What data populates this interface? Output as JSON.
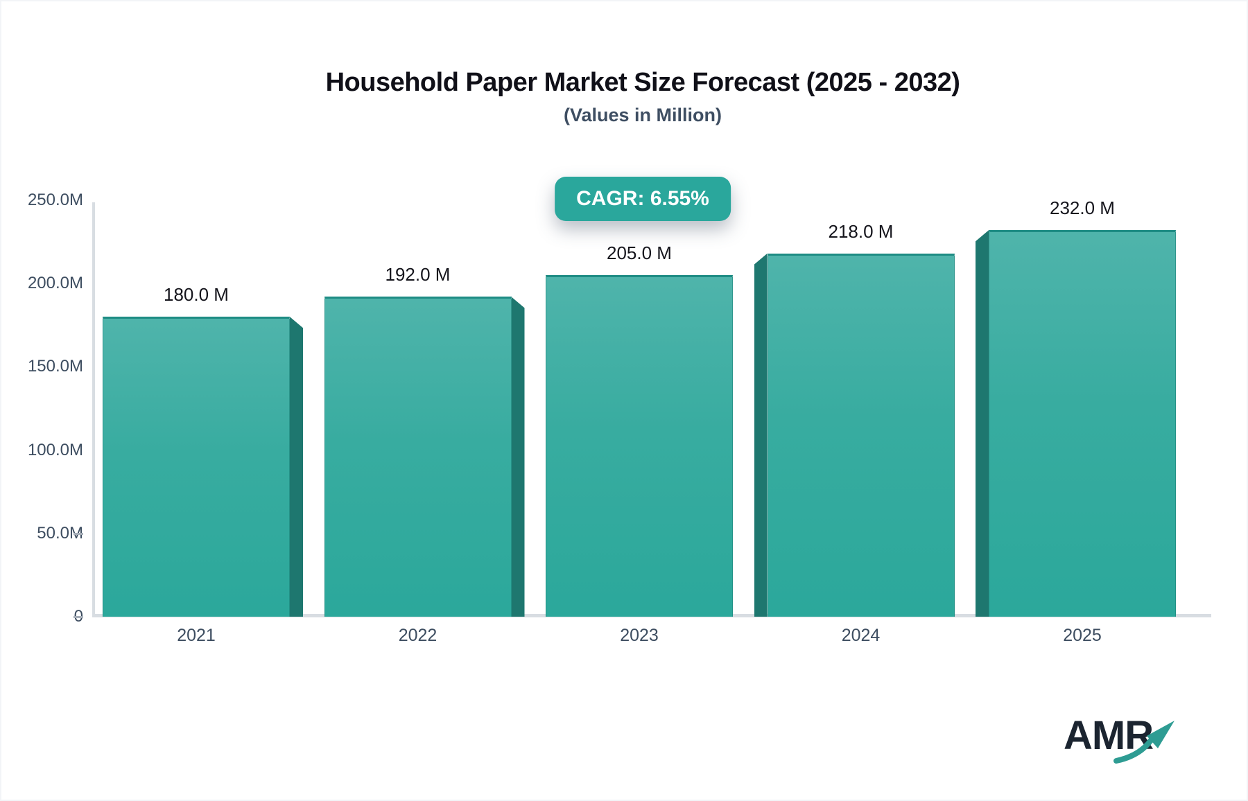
{
  "chart_data": {
    "type": "bar",
    "title": "Household Paper Market Size Forecast (2025 - 2032)",
    "subtitle": "(Values in Million)",
    "categories": [
      "2021",
      "2022",
      "2023",
      "2024",
      "2025"
    ],
    "values": [
      180.0,
      192.0,
      205.0,
      218.0,
      232.0
    ],
    "value_labels": [
      "180.0 M",
      "192.0 M",
      "205.0 M",
      "218.0 M",
      "232.0 M"
    ],
    "unit": "Million",
    "annotations": [
      {
        "text": "CAGR: 6.55%"
      }
    ],
    "ylim": [
      0,
      250
    ],
    "yticks": [
      {
        "value": 250,
        "label": "250.0M",
        "tick": false
      },
      {
        "value": 200,
        "label": "200.0M",
        "tick": false
      },
      {
        "value": 150,
        "label": "150.0M",
        "tick": false
      },
      {
        "value": 100,
        "label": "100.0M",
        "tick": false
      },
      {
        "value": 50,
        "label": "50.0M",
        "tick": true
      },
      {
        "value": 0,
        "label": "0",
        "tick": true
      }
    ],
    "grid": false,
    "legend": false,
    "bar_3d_sides": [
      "right",
      "right",
      "none",
      "left",
      "left"
    ],
    "bar_style": {
      "face_top": "#4FB4AB",
      "face_bottom": "#2BA89C",
      "top_edge": "#1E8C84",
      "side_3d": "#1E776F"
    }
  },
  "logo": {
    "text": "AMR"
  },
  "colors": {
    "accent_teal": "#2AA79C",
    "axis_gray": "#D8DDE2",
    "tick_text": "#3D4D60",
    "title_text": "#101018",
    "logo_navy": "#1B2430",
    "logo_teal": "#2E9C93"
  }
}
